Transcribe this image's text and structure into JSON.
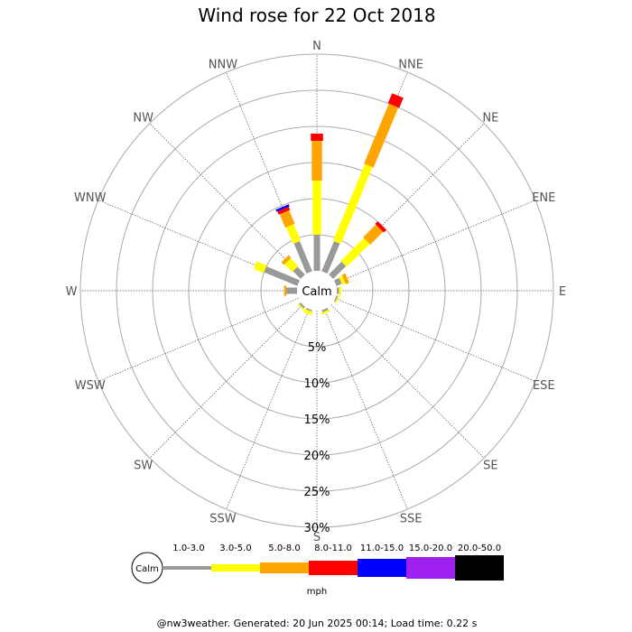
{
  "title": "Wind rose for 22 Oct 2018",
  "footer": "@nw3weather. Generated: 20 Jun 2025 00:14; Load time: 0.22 s",
  "calm_label": "Calm",
  "unit_label": "mph",
  "chart_data": {
    "type": "wind-rose",
    "title": "Wind rose for 22 Oct 2018",
    "directions": [
      "N",
      "NNE",
      "NE",
      "ENE",
      "E",
      "ESE",
      "SE",
      "SSE",
      "S",
      "SSW",
      "SW",
      "WSW",
      "W",
      "WNW",
      "NW",
      "NNW"
    ],
    "radial_ticks": [
      "5%",
      "10%",
      "15%",
      "20%",
      "25%",
      "30%"
    ],
    "radial_values": [
      5,
      10,
      15,
      20,
      25,
      30
    ],
    "radial_max": 30,
    "speed_bins": [
      {
        "label": "1.0-3.0",
        "color": "#999999"
      },
      {
        "label": "3.0-5.0",
        "color": "#ffff00"
      },
      {
        "label": "5.0-8.0",
        "color": "#ffa500"
      },
      {
        "label": "8.0-11.0",
        "color": "#ff0000"
      },
      {
        "label": "11.0-15.0",
        "color": "#0000ff"
      },
      {
        "label": "15.0-20.0",
        "color": "#a020f0"
      },
      {
        "label": "20.0-50.0",
        "color": "#000000"
      }
    ],
    "unit": "mph",
    "frequencies": {
      "N": [
        5.0,
        7.5,
        5.5,
        1.0,
        0,
        0,
        0
      ],
      "NNE": [
        4.5,
        11.5,
        9.0,
        1.5,
        0,
        0,
        0
      ],
      "NE": [
        2.5,
        4.5,
        2.5,
        0.5,
        0,
        0,
        0
      ],
      "ENE": [
        0.8,
        0.5,
        0.5,
        0,
        0,
        0,
        0
      ],
      "E": [
        0.3,
        0.3,
        0,
        0,
        0,
        0,
        0
      ],
      "ESE": [
        0.2,
        0.2,
        0,
        0,
        0,
        0,
        0
      ],
      "SE": [
        0,
        0,
        0,
        0,
        0,
        0,
        0
      ],
      "SSE": [
        0.3,
        0.3,
        0,
        0,
        0,
        0,
        0
      ],
      "S": [
        0,
        0,
        0,
        0,
        0,
        0,
        0
      ],
      "SSW": [
        0.2,
        0.5,
        0,
        0,
        0,
        0,
        0
      ],
      "SW": [
        0.3,
        0.2,
        0,
        0,
        0,
        0,
        0
      ],
      "WSW": [
        0,
        0,
        0,
        0,
        0,
        0,
        0
      ],
      "W": [
        1.5,
        0,
        0.3,
        0,
        0,
        0,
        0
      ],
      "WNW": [
        5.0,
        1.5,
        0,
        0,
        0,
        0,
        0
      ],
      "NW": [
        1.5,
        1.5,
        0.5,
        0,
        0,
        0,
        0
      ],
      "NNW": [
        4.5,
        2.5,
        2.0,
        0.5,
        0.3,
        0,
        0
      ]
    }
  }
}
